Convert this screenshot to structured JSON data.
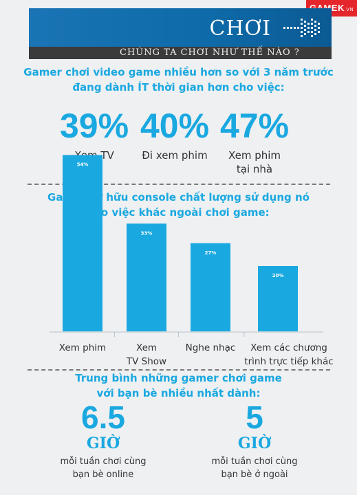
{
  "logo": {
    "text": "GAMEK",
    "suffix": ".VN"
  },
  "banner": {
    "title": "CHƠI",
    "subtitle": "CHÚNG TA CHƠI NHƯ THẾ NÀO ?"
  },
  "section1": {
    "heading_line1": "Gamer chơi video game nhiều hơn so với 3 năm trước",
    "heading_line2": "đang dành ÍT thời gian hơn cho việc:",
    "stats": [
      {
        "value": "39%",
        "label_line1": "Xem TV",
        "label_line2": ""
      },
      {
        "value": "40%",
        "label_line1": "Đi xem phim",
        "label_line2": ""
      },
      {
        "value": "47%",
        "label_line1": "Xem phim",
        "label_line2": "tại nhà"
      }
    ]
  },
  "section2": {
    "heading_line1": "Gamer sở hữu console chất lượng sử dụng nó",
    "heading_line2": "cho việc khác ngoài chơi game:"
  },
  "chart_data": {
    "type": "bar",
    "categories": [
      "Xem phim",
      "Xem TV Show",
      "Nghe nhạc",
      "Xem các chương trình trực tiếp khác"
    ],
    "category_lines": [
      [
        "Xem phim"
      ],
      [
        "Xem",
        "TV Show"
      ],
      [
        "Nghe nhạc"
      ],
      [
        "Xem các chương",
        "trình trực tiếp khác"
      ]
    ],
    "values": [
      54,
      33,
      27,
      20
    ],
    "value_labels": [
      "54%",
      "33%",
      "27%",
      "20%"
    ],
    "unit": "%",
    "ylim": [
      0,
      60
    ],
    "bar_color": "#1aa8e0",
    "grid": false
  },
  "section3": {
    "heading_line1": "Trung bình những gamer chơi game",
    "heading_line2": "với bạn bè nhiều nhất dành:",
    "items": [
      {
        "value": "6.5",
        "unit": "GIỜ",
        "desc_line1": "mỗi tuần chơi cùng",
        "desc_line2": "bạn bè online"
      },
      {
        "value": "5",
        "unit": "GIỜ",
        "desc_line1": "mỗi tuần chơi cùng",
        "desc_line2": "bạn bè ở ngoài"
      }
    ]
  },
  "colors": {
    "accent": "#1aa8e0",
    "banner": "#0e6aa8",
    "subbar": "#3b3b3b",
    "logo": "#e4262b"
  }
}
